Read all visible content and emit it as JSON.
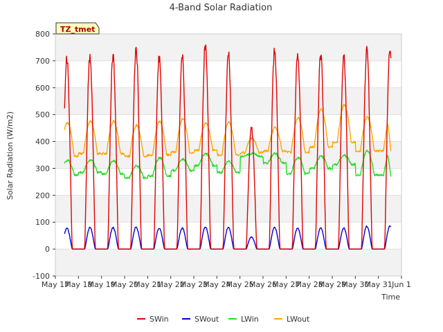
{
  "chart_data": {
    "type": "line",
    "title": "4-Band Solar Radiation",
    "xlabel": "Time",
    "ylabel": "Solar Radiation (W/m2)",
    "ylim": [
      -100,
      800
    ],
    "yticks": [
      -100,
      0,
      100,
      200,
      300,
      400,
      500,
      600,
      700,
      800
    ],
    "xticks": [
      "May 17",
      "May 18",
      "May 19",
      "May 20",
      "May 21",
      "May 22",
      "May 23",
      "May 24",
      "May 25",
      "May 26",
      "May 27",
      "May 28",
      "May 29",
      "May 30",
      "May 31",
      "Jun 1"
    ],
    "grid": "alternating horizontal bands",
    "legend_position": "bottom-center",
    "station_badge": "TZ_tmet",
    "series": [
      {
        "name": "SWin",
        "color": "#e00000",
        "daily_peaks": [
          {
            "day": "May 17",
            "value": 715
          },
          {
            "day": "May 18",
            "value": 718
          },
          {
            "day": "May 19",
            "value": 718
          },
          {
            "day": "May 20",
            "value": 740
          },
          {
            "day": "May 21",
            "value": 712
          },
          {
            "day": "May 22",
            "value": 712
          },
          {
            "day": "May 23",
            "value": 760
          },
          {
            "day": "May 24",
            "value": 720
          },
          {
            "day": "May 25",
            "value": 450
          },
          {
            "day": "May 26",
            "value": 738
          },
          {
            "day": "May 27",
            "value": 728
          },
          {
            "day": "May 28",
            "value": 725
          },
          {
            "day": "May 29",
            "value": 720
          },
          {
            "day": "May 30",
            "value": 738
          }
        ],
        "night_value": 0
      },
      {
        "name": "SWout",
        "color": "#0000d0",
        "daily_peaks": [
          {
            "day": "May 17",
            "value": 78
          },
          {
            "day": "May 18",
            "value": 80
          },
          {
            "day": "May 19",
            "value": 80
          },
          {
            "day": "May 20",
            "value": 82
          },
          {
            "day": "May 21",
            "value": 78
          },
          {
            "day": "May 22",
            "value": 78
          },
          {
            "day": "May 23",
            "value": 82
          },
          {
            "day": "May 24",
            "value": 80
          },
          {
            "day": "May 25",
            "value": 45
          },
          {
            "day": "May 26",
            "value": 80
          },
          {
            "day": "May 27",
            "value": 78
          },
          {
            "day": "May 28",
            "value": 78
          },
          {
            "day": "May 29",
            "value": 78
          },
          {
            "day": "May 30",
            "value": 85
          }
        ],
        "night_value": 0
      },
      {
        "name": "LWin",
        "color": "#22dd22",
        "daily": [
          {
            "day": "May 17",
            "night": 275,
            "day_value": 330
          },
          {
            "day": "May 18",
            "night": 285,
            "day_value": 332
          },
          {
            "day": "May 19",
            "night": 280,
            "day_value": 328
          },
          {
            "day": "May 20",
            "night": 265,
            "day_value": 310
          },
          {
            "day": "May 21",
            "night": 272,
            "day_value": 340
          },
          {
            "day": "May 22",
            "night": 292,
            "day_value": 335
          },
          {
            "day": "May 23",
            "night": 310,
            "day_value": 355
          },
          {
            "day": "May 24",
            "night": 285,
            "day_value": 325
          },
          {
            "day": "May 25",
            "night": 345,
            "day_value": 355
          },
          {
            "day": "May 26",
            "night": 320,
            "day_value": 355
          },
          {
            "day": "May 27",
            "night": 280,
            "day_value": 340
          },
          {
            "day": "May 28",
            "night": 300,
            "day_value": 345
          },
          {
            "day": "May 29",
            "night": 315,
            "day_value": 348
          },
          {
            "day": "May 30",
            "night": 275,
            "day_value": 365
          }
        ],
        "end_value": 262
      },
      {
        "name": "LWout",
        "color": "#ffa500",
        "daily": [
          {
            "day": "May 17",
            "night": 345,
            "day_value": 470
          },
          {
            "day": "May 18",
            "night": 355,
            "day_value": 475
          },
          {
            "day": "May 19",
            "night": 355,
            "day_value": 475
          },
          {
            "day": "May 20",
            "night": 345,
            "day_value": 460
          },
          {
            "day": "May 21",
            "night": 350,
            "day_value": 475
          },
          {
            "day": "May 22",
            "night": 360,
            "day_value": 485
          },
          {
            "day": "May 23",
            "night": 368,
            "day_value": 468
          },
          {
            "day": "May 24",
            "night": 350,
            "day_value": 472
          },
          {
            "day": "May 25",
            "night": 358,
            "day_value": 412
          },
          {
            "day": "May 26",
            "night": 365,
            "day_value": 452
          },
          {
            "day": "May 27",
            "night": 360,
            "day_value": 488
          },
          {
            "day": "May 28",
            "night": 380,
            "day_value": 520
          },
          {
            "day": "May 29",
            "night": 398,
            "day_value": 535
          },
          {
            "day": "May 30",
            "night": 365,
            "day_value": 490
          }
        ],
        "end_value": 355
      }
    ]
  }
}
